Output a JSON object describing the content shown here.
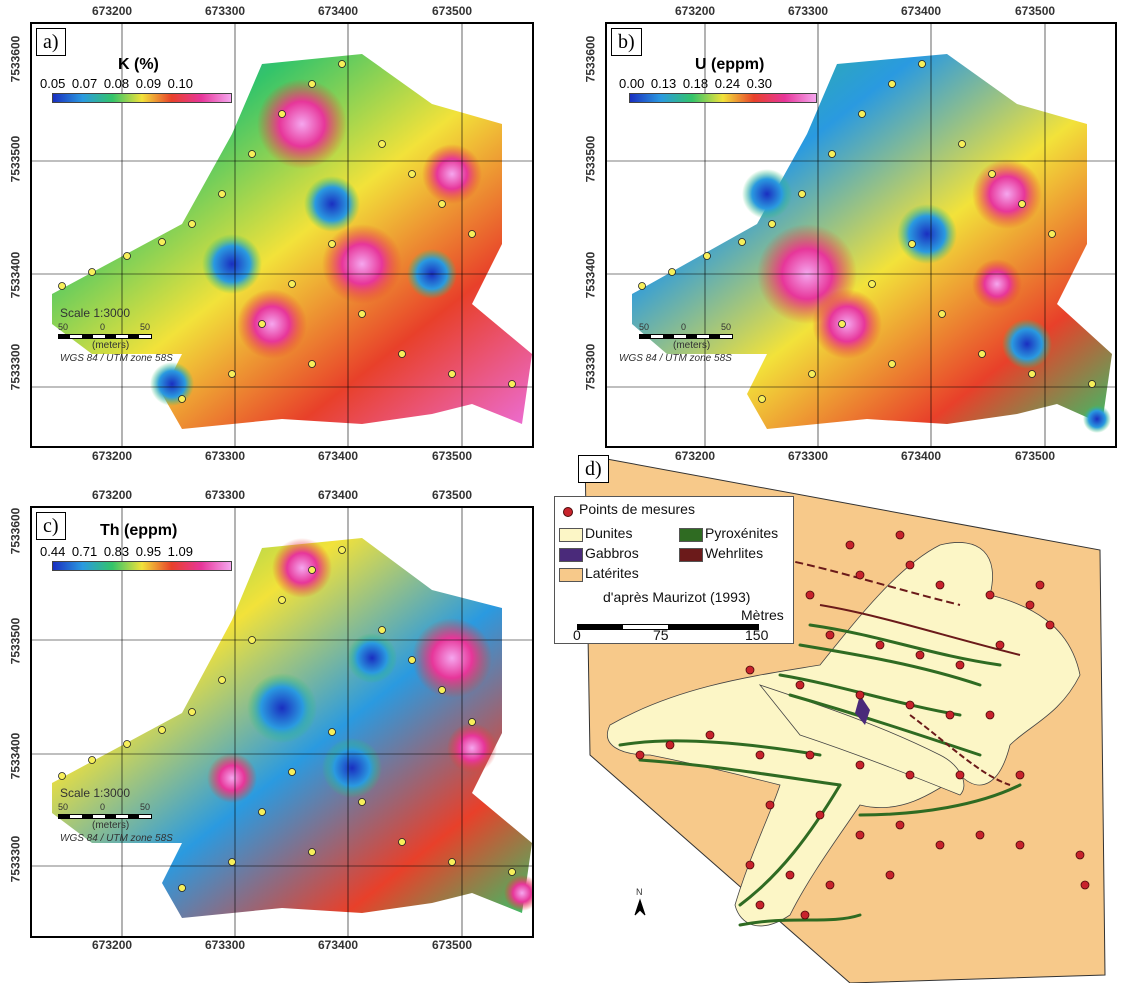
{
  "panels": [
    {
      "id": "a",
      "label": "a)",
      "colorbar_title": "K (%)",
      "colorbar_values": "0.05 0.07 0.08 0.09 0.10",
      "x_ticks": [
        "673200",
        "673300",
        "673400",
        "673500"
      ],
      "y_ticks": [
        "7533600",
        "7533500",
        "7533400",
        "7533300"
      ],
      "scale_label": "Scale 1:3000",
      "scale_ticks": [
        "50",
        "0",
        "50"
      ],
      "scale_unit": "(meters)",
      "crs": "WGS 84 / UTM zone 58S"
    },
    {
      "id": "b",
      "label": "b)",
      "colorbar_title": "U (eppm)",
      "colorbar_values": "0.00 0.13 0.18 0.24 0.30",
      "x_ticks": [
        "673200",
        "673300",
        "673400",
        "673500"
      ],
      "y_ticks": [
        "7533600",
        "7533500",
        "7533400",
        "7533300"
      ],
      "scale_ticks": [
        "50",
        "0",
        "50"
      ],
      "scale_unit": "(meters)",
      "crs": "WGS 84 / UTM zone 58S"
    },
    {
      "id": "c",
      "label": "c)",
      "colorbar_title": "Th (eppm)",
      "colorbar_values": "0.44 0.71 0.83 0.95 1.09",
      "x_ticks": [
        "673200",
        "673300",
        "673400",
        "673500"
      ],
      "y_ticks": [
        "7533600",
        "7533500",
        "7533400",
        "7533300"
      ],
      "scale_label": "Scale 1:3000",
      "scale_ticks": [
        "50",
        "0",
        "50"
      ],
      "scale_unit": "(meters)",
      "crs": "WGS 84 / UTM zone 58S"
    }
  ],
  "panel_d": {
    "label": "d)",
    "legend": {
      "points": "Points de mesures",
      "dunites": "Dunites",
      "pyroxenites": "Pyroxénites",
      "gabbros": "Gabbros",
      "wehrlites": "Wehrlites",
      "laterites": "Latérites",
      "source": "d'après Maurizot (1993)",
      "scale_unit": "Mètres",
      "scale_ticks": [
        "0",
        "75",
        "150"
      ]
    },
    "north_label": "N",
    "colors": {
      "laterites": "#f7c98a",
      "dunites": "#fcf6c6",
      "pyroxenites": "#2f6b22",
      "gabbros": "#4a2a7a",
      "wehrlites": "#6b1a1a",
      "points": "#c8232c"
    }
  }
}
